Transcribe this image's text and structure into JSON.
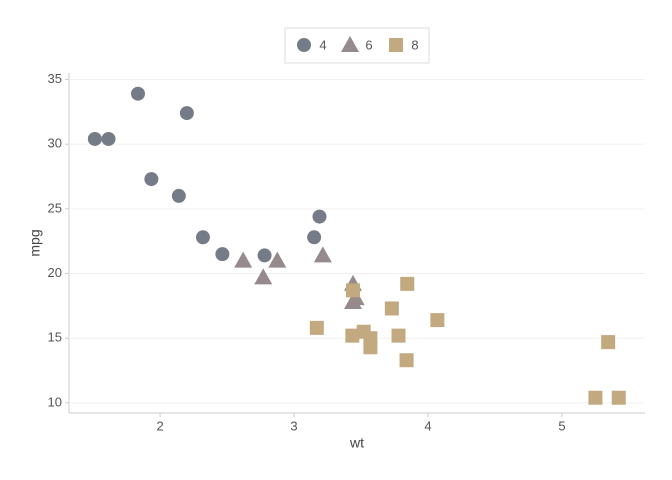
{
  "chart_data": {
    "type": "scatter",
    "xlabel": "wt",
    "ylabel": "mpg",
    "xlim": [
      1.32,
      5.62
    ],
    "xticks": [
      2,
      3,
      4,
      5
    ],
    "ylim": [
      9.22,
      35.5
    ],
    "yticks": [
      10,
      15,
      20,
      25,
      30,
      35
    ],
    "grid": true,
    "legend": "top",
    "series": [
      {
        "name": "4",
        "color": "#767c87",
        "shape": "circle",
        "x": [
          2.32,
          3.19,
          3.15,
          2.2,
          1.615,
          1.835,
          2.465,
          1.935,
          2.14,
          1.513,
          2.78
        ],
        "values": [
          22.8,
          24.4,
          22.8,
          32.4,
          30.4,
          33.9,
          21.5,
          27.3,
          26.0,
          30.4,
          21.4
        ]
      },
      {
        "name": "6",
        "color": "#968a8d",
        "shape": "triangle",
        "x": [
          2.62,
          2.875,
          3.215,
          3.46,
          3.44,
          3.44,
          2.77
        ],
        "values": [
          21.0,
          21.0,
          21.4,
          18.1,
          19.2,
          17.8,
          19.7
        ]
      },
      {
        "name": "8",
        "color": "#c2a97f",
        "shape": "square",
        "x": [
          3.44,
          3.57,
          4.07,
          3.73,
          3.78,
          5.25,
          5.424,
          5.345,
          3.52,
          3.435,
          3.84,
          3.845,
          3.17,
          3.57
        ],
        "values": [
          18.7,
          14.3,
          16.4,
          17.3,
          15.2,
          10.4,
          10.4,
          14.7,
          15.5,
          15.2,
          13.3,
          19.2,
          15.8,
          15.0
        ]
      }
    ]
  }
}
